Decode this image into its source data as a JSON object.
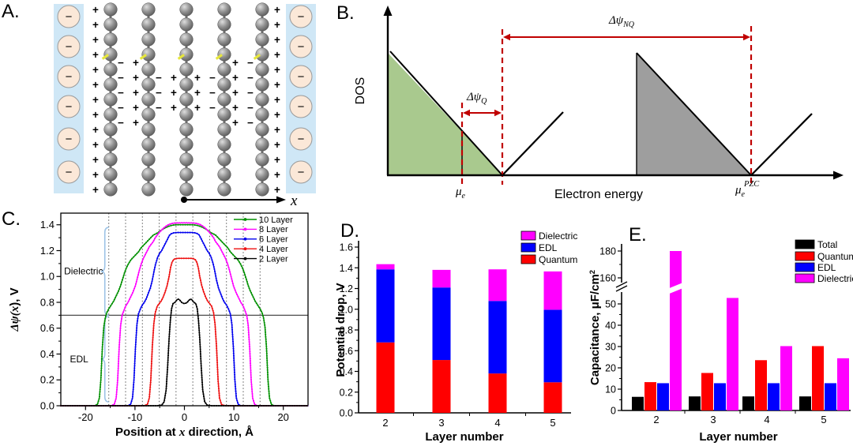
{
  "panels": {
    "a": "A.",
    "b": "B.",
    "c": "C.",
    "d": "D.",
    "e": "E."
  },
  "panel_a": {
    "label_x": "x",
    "plus": "+",
    "minus": "−",
    "anions_per_side": 6,
    "chains": 5,
    "atoms_per_chain": 13,
    "outer_charge": "+",
    "inner_pairs": [
      {
        "left": "−",
        "right": "+",
        "rows": 5
      },
      {
        "left": "−",
        "right": "+",
        "rows": 3
      },
      {
        "left": "+",
        "right": "−",
        "rows": 3
      },
      {
        "left": "+",
        "right": "−",
        "rows": 5
      }
    ],
    "colors": {
      "electrolyte": "#cfe7f6",
      "anion_fill": "#fbe8d8",
      "atom_gray": "#8a8a8a"
    }
  },
  "panel_b": {
    "ylabel": "DOS",
    "xlabel": "Electron energy",
    "mu_e": {
      "base": "μ",
      "sub": "e"
    },
    "mu_pzc": {
      "base": "μ",
      "sub": "e",
      "sup": "PZC"
    },
    "dpsi_q": {
      "base": "Δψ",
      "sub": "Q"
    },
    "dpsi_nq": {
      "base": "Δψ",
      "sub": "NQ"
    },
    "colors": {
      "fill_green": "#a9c98e",
      "fill_gray": "#9e9e9e",
      "annotation_red": "#c00000"
    }
  },
  "chart_data": [
    {
      "panel": "C",
      "type": "line",
      "xlabel_parts": [
        "Position at ",
        "x",
        " direction, Å"
      ],
      "ylabel_parts": [
        "Δψ(",
        "x",
        "), V"
      ],
      "xlim": [
        -25,
        25
      ],
      "ylim": [
        0,
        1.49
      ],
      "xticks": [
        -20,
        -10,
        0,
        10,
        20
      ],
      "xticks_minor": [
        -15,
        -5,
        5,
        15
      ],
      "yticks": [
        0.0,
        0.2,
        0.4,
        0.6,
        0.8,
        1.0,
        1.2,
        1.4
      ],
      "hline_y": 0.7,
      "layer_position_vlines": [
        -15.3,
        -11.9,
        -8.5,
        -5.1,
        -1.7,
        1.7,
        5.1,
        8.5,
        11.9,
        15.3
      ],
      "regions": [
        {
          "label": "Dielectric",
          "y_from": 0.7,
          "y_to": 1.38
        },
        {
          "label": "EDL",
          "y_from": 0.03,
          "y_to": 0.69
        }
      ],
      "region_brace_color": "#9dc3e6",
      "legend_position": "top-right",
      "series": [
        {
          "name": "10 Layer",
          "color": "#009000",
          "mirror": true,
          "points": [
            [
              -25,
              0
            ],
            [
              -18.2,
              0
            ],
            [
              -17.6,
              0.01
            ],
            [
              -17.2,
              0.06
            ],
            [
              -16.9,
              0.2
            ],
            [
              -16.6,
              0.45
            ],
            [
              -16.3,
              0.61
            ],
            [
              -16,
              0.68
            ],
            [
              -15.7,
              0.72
            ],
            [
              -15.3,
              0.75
            ],
            [
              -14.8,
              0.78
            ],
            [
              -14.3,
              0.81
            ],
            [
              -13.8,
              0.85
            ],
            [
              -13.3,
              0.89
            ],
            [
              -12.9,
              0.93
            ],
            [
              -12.5,
              0.98
            ],
            [
              -12.1,
              1.03
            ],
            [
              -11.7,
              1.07
            ],
            [
              -11.3,
              1.1
            ],
            [
              -10.8,
              1.13
            ],
            [
              -10.3,
              1.15
            ],
            [
              -9.8,
              1.17
            ],
            [
              -9.3,
              1.19
            ],
            [
              -8.8,
              1.22
            ],
            [
              -8.3,
              1.24
            ],
            [
              -7.8,
              1.26
            ],
            [
              -7.3,
              1.28
            ],
            [
              -6.8,
              1.3
            ],
            [
              -6.3,
              1.32
            ],
            [
              -5.8,
              1.33
            ],
            [
              -5.3,
              1.34
            ],
            [
              -4.8,
              1.355
            ],
            [
              -4.3,
              1.367
            ],
            [
              -3.8,
              1.378
            ],
            [
              -3.2,
              1.388
            ],
            [
              -2.6,
              1.395
            ],
            [
              -2,
              1.399
            ],
            [
              -1.2,
              1.4
            ],
            [
              0,
              1.4
            ]
          ]
        },
        {
          "name": "8 Layer",
          "color": "#ff00ff",
          "mirror": true,
          "points": [
            [
              -25,
              0
            ],
            [
              -14.8,
              0
            ],
            [
              -14.2,
              0.01
            ],
            [
              -13.8,
              0.06
            ],
            [
              -13.5,
              0.2
            ],
            [
              -13.2,
              0.45
            ],
            [
              -12.9,
              0.62
            ],
            [
              -12.6,
              0.7
            ],
            [
              -12.2,
              0.74
            ],
            [
              -11.9,
              0.77
            ],
            [
              -11.4,
              0.8
            ],
            [
              -10.9,
              0.84
            ],
            [
              -10.4,
              0.88
            ],
            [
              -9.9,
              0.93
            ],
            [
              -9.5,
              0.99
            ],
            [
              -9.1,
              1.05
            ],
            [
              -8.7,
              1.1
            ],
            [
              -8.3,
              1.14
            ],
            [
              -7.9,
              1.17
            ],
            [
              -7.5,
              1.2
            ],
            [
              -7.1,
              1.23
            ],
            [
              -6.7,
              1.25
            ],
            [
              -6.3,
              1.27
            ],
            [
              -5.9,
              1.3
            ],
            [
              -5.5,
              1.32
            ],
            [
              -5.1,
              1.34
            ],
            [
              -4.6,
              1.36
            ],
            [
              -4.1,
              1.378
            ],
            [
              -3.6,
              1.392
            ],
            [
              -3.1,
              1.403
            ],
            [
              -2.5,
              1.41
            ],
            [
              -1.8,
              1.414
            ],
            [
              0,
              1.415
            ]
          ]
        },
        {
          "name": "6 Layer",
          "color": "#0000ee",
          "mirror": true,
          "points": [
            [
              -25,
              0
            ],
            [
              -11.5,
              0
            ],
            [
              -10.9,
              0.01
            ],
            [
              -10.5,
              0.06
            ],
            [
              -10.2,
              0.2
            ],
            [
              -9.9,
              0.45
            ],
            [
              -9.6,
              0.63
            ],
            [
              -9.3,
              0.71
            ],
            [
              -8.9,
              0.75
            ],
            [
              -8.5,
              0.78
            ],
            [
              -8.1,
              0.8
            ],
            [
              -7.7,
              0.83
            ],
            [
              -7.3,
              0.87
            ],
            [
              -6.9,
              0.91
            ],
            [
              -6.5,
              0.97
            ],
            [
              -6.1,
              1.05
            ],
            [
              -5.8,
              1.1
            ],
            [
              -5.4,
              1.15
            ],
            [
              -5,
              1.18
            ],
            [
              -4.6,
              1.2
            ],
            [
              -4.2,
              1.23
            ],
            [
              -3.8,
              1.26
            ],
            [
              -3.4,
              1.29
            ],
            [
              -3,
              1.32
            ],
            [
              -2.6,
              1.332
            ],
            [
              -2.1,
              1.338
            ],
            [
              -1.5,
              1.34
            ],
            [
              0,
              1.34
            ]
          ]
        },
        {
          "name": "4 Layer",
          "color": "#ee1111",
          "mirror": true,
          "points": [
            [
              -25,
              0
            ],
            [
              -8.2,
              0
            ],
            [
              -7.5,
              0.01
            ],
            [
              -7.1,
              0.06
            ],
            [
              -6.8,
              0.2
            ],
            [
              -6.5,
              0.45
            ],
            [
              -6.2,
              0.63
            ],
            [
              -5.9,
              0.72
            ],
            [
              -5.5,
              0.77
            ],
            [
              -5.1,
              0.79
            ],
            [
              -4.7,
              0.81
            ],
            [
              -4.3,
              0.84
            ],
            [
              -3.9,
              0.88
            ],
            [
              -3.5,
              0.93
            ],
            [
              -3.1,
              1
            ],
            [
              -2.8,
              1.07
            ],
            [
              -2.5,
              1.11
            ],
            [
              -2.2,
              1.13
            ],
            [
              -1.8,
              1.138
            ],
            [
              -1.3,
              1.14
            ],
            [
              0,
              1.14
            ]
          ]
        },
        {
          "name": "2 Layer",
          "color": "#000000",
          "mirror": true,
          "points": [
            [
              -25,
              0
            ],
            [
              -5.5,
              0
            ],
            [
              -4.6,
              0.005
            ],
            [
              -4.1,
              0.03
            ],
            [
              -3.7,
              0.12
            ],
            [
              -3.4,
              0.3
            ],
            [
              -3.1,
              0.52
            ],
            [
              -2.85,
              0.66
            ],
            [
              -2.6,
              0.75
            ],
            [
              -2.3,
              0.79
            ],
            [
              -1.9,
              0.8
            ],
            [
              -1.5,
              0.82
            ],
            [
              -1.2,
              0.825
            ],
            [
              -0.9,
              0.815
            ],
            [
              -0.5,
              0.797
            ],
            [
              0,
              0.79
            ]
          ]
        }
      ]
    },
    {
      "panel": "D",
      "type": "bar-stacked",
      "categories": [
        "2",
        "3",
        "4",
        "5"
      ],
      "xlabel": "Layer number",
      "ylabel": "Potential drop, V",
      "ylim": [
        0,
        1.6
      ],
      "yticks": [
        0.0,
        0.2,
        0.4,
        0.6,
        0.8,
        1.0,
        1.2,
        1.4,
        1.6
      ],
      "series": [
        {
          "name": "Quantum",
          "color": "#ff0000",
          "values": [
            0.68,
            0.51,
            0.38,
            0.295
          ]
        },
        {
          "name": "EDL",
          "color": "#0000ff",
          "values": [
            0.705,
            0.7,
            0.7,
            0.7
          ]
        },
        {
          "name": "Dielectric",
          "color": "#ff00ff",
          "values": [
            0.05,
            0.17,
            0.305,
            0.37
          ]
        }
      ],
      "stack_totals": [
        1.435,
        1.38,
        1.385,
        1.365
      ],
      "legend_order": [
        "Dielectric",
        "EDL",
        "Quantum"
      ]
    },
    {
      "panel": "E",
      "type": "bar-grouped",
      "categories": [
        "2",
        "3",
        "4",
        "5"
      ],
      "xlabel": "Layer number",
      "ylabel_parts": [
        "Capacitance, μF/cm",
        "2"
      ],
      "axis_break": {
        "lower_range": [
          0,
          55
        ],
        "upper_range": [
          155,
          185
        ]
      },
      "yticks_lower": [
        0,
        10,
        20,
        30,
        40,
        50
      ],
      "yticks_upper": [
        160,
        180
      ],
      "series": [
        {
          "name": "Total",
          "color": "#000000",
          "values": [
            6.4,
            6.6,
            6.6,
            6.6
          ]
        },
        {
          "name": "Quantum",
          "color": "#ff0000",
          "values": [
            13.3,
            17.6,
            23.6,
            30.2
          ]
        },
        {
          "name": "EDL",
          "color": "#0000ff",
          "values": [
            12.8,
            12.8,
            12.8,
            12.8
          ]
        },
        {
          "name": "Dielectric",
          "color": "#ff00ff",
          "values": [
            180,
            52.8,
            30.2,
            24.5
          ]
        }
      ]
    }
  ]
}
